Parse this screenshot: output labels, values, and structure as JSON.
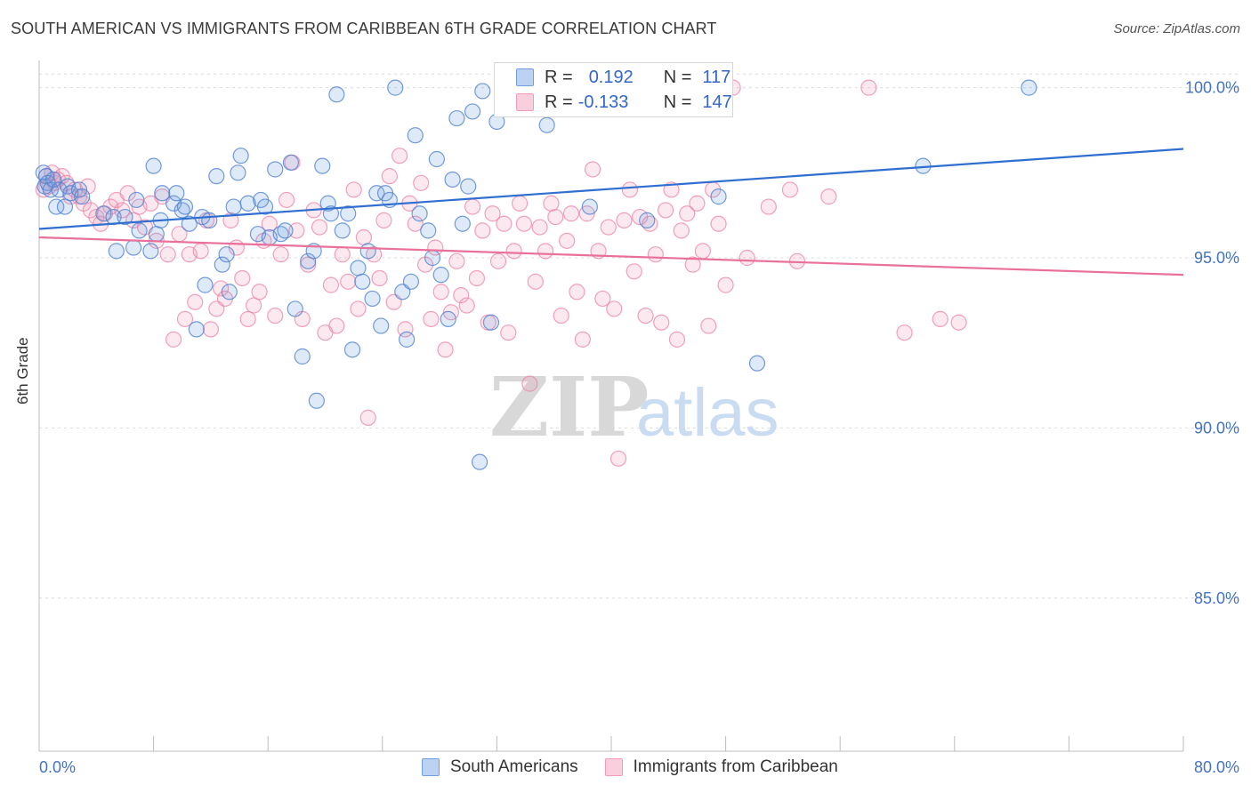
{
  "title": "SOUTH AMERICAN VS IMMIGRANTS FROM CARIBBEAN 6TH GRADE CORRELATION CHART",
  "source": "Source: ZipAtlas.com",
  "watermark": {
    "zip": "ZIP",
    "atlas": "atlas"
  },
  "legend_top": {
    "rows": [
      {
        "r_label": "R =",
        "r_value": "0.192",
        "n_label": "N =",
        "n_value": "117"
      },
      {
        "r_label": "R =",
        "r_value": "-0.133",
        "n_label": "N =",
        "n_value": "147"
      }
    ]
  },
  "legend_bottom": [
    "South Americans",
    "Immigrants from Caribbean"
  ],
  "chart_data": {
    "type": "scatter",
    "title": "SOUTH AMERICAN VS IMMIGRANTS FROM CARIBBEAN 6TH GRADE CORRELATION CHART",
    "xlabel": "",
    "ylabel": "6th Grade",
    "xlim": [
      0,
      80
    ],
    "ylim": [
      80.5,
      100.8
    ],
    "x_tick_labels": [
      "0.0%",
      "80.0%"
    ],
    "y_tick_values": [
      85,
      90,
      95,
      100
    ],
    "y_tick_labels": [
      "85.0%",
      "90.0%",
      "95.0%",
      "100.0%"
    ],
    "grid": true,
    "legend_placement": "bottom",
    "colors": {
      "South Americans": "#6f9fe0",
      "Immigrants from Caribbean": "#f29ab8",
      "line_blue": "#2f6fd0",
      "line_pink": "#e8709a"
    },
    "series": [
      {
        "name": "South Americans",
        "trend": {
          "x": [
            0,
            80
          ],
          "y": [
            95.85,
            98.2
          ]
        },
        "points": [
          [
            0.3,
            97.5
          ],
          [
            0.4,
            97.1
          ],
          [
            0.5,
            97.4
          ],
          [
            0.6,
            97.2
          ],
          [
            0.8,
            97.0
          ],
          [
            1.0,
            97.3
          ],
          [
            1.2,
            96.5
          ],
          [
            1.4,
            97.0
          ],
          [
            1.8,
            96.5
          ],
          [
            2.0,
            97.1
          ],
          [
            2.2,
            96.9
          ],
          [
            2.8,
            97.0
          ],
          [
            3.0,
            96.8
          ],
          [
            4.5,
            96.3
          ],
          [
            5.2,
            96.2
          ],
          [
            5.4,
            95.2
          ],
          [
            6.0,
            96.2
          ],
          [
            6.6,
            95.3
          ],
          [
            6.8,
            96.7
          ],
          [
            7.0,
            95.8
          ],
          [
            7.8,
            95.2
          ],
          [
            8.0,
            97.7
          ],
          [
            8.2,
            95.7
          ],
          [
            8.5,
            96.1
          ],
          [
            8.6,
            96.9
          ],
          [
            9.4,
            96.6
          ],
          [
            9.6,
            96.9
          ],
          [
            10.0,
            96.4
          ],
          [
            10.2,
            96.5
          ],
          [
            10.5,
            96.0
          ],
          [
            11.0,
            92.9
          ],
          [
            11.4,
            96.2
          ],
          [
            11.6,
            94.2
          ],
          [
            11.9,
            96.1
          ],
          [
            12.4,
            97.4
          ],
          [
            12.8,
            94.8
          ],
          [
            13.1,
            95.1
          ],
          [
            13.3,
            94.0
          ],
          [
            13.6,
            96.5
          ],
          [
            13.9,
            97.5
          ],
          [
            14.1,
            98.0
          ],
          [
            14.6,
            96.6
          ],
          [
            15.3,
            95.7
          ],
          [
            15.5,
            96.7
          ],
          [
            15.8,
            96.5
          ],
          [
            16.1,
            95.6
          ],
          [
            16.5,
            97.6
          ],
          [
            16.9,
            95.7
          ],
          [
            17.2,
            95.8
          ],
          [
            17.6,
            97.8
          ],
          [
            17.9,
            93.5
          ],
          [
            18.4,
            92.1
          ],
          [
            18.8,
            94.9
          ],
          [
            19.2,
            95.2
          ],
          [
            19.4,
            90.8
          ],
          [
            19.8,
            97.7
          ],
          [
            20.2,
            96.6
          ],
          [
            20.4,
            96.3
          ],
          [
            20.8,
            99.8
          ],
          [
            21.2,
            95.8
          ],
          [
            21.6,
            96.3
          ],
          [
            21.9,
            92.3
          ],
          [
            22.3,
            94.7
          ],
          [
            22.6,
            94.3
          ],
          [
            23.0,
            95.2
          ],
          [
            23.3,
            93.8
          ],
          [
            23.6,
            96.9
          ],
          [
            23.9,
            93.0
          ],
          [
            24.2,
            96.9
          ],
          [
            24.5,
            96.7
          ],
          [
            24.9,
            100.0
          ],
          [
            25.4,
            94.0
          ],
          [
            25.7,
            92.6
          ],
          [
            26.0,
            94.3
          ],
          [
            26.3,
            98.6
          ],
          [
            26.6,
            96.3
          ],
          [
            27.2,
            95.8
          ],
          [
            27.5,
            95.0
          ],
          [
            27.8,
            97.9
          ],
          [
            28.1,
            94.5
          ],
          [
            28.6,
            93.2
          ],
          [
            28.9,
            97.3
          ],
          [
            29.2,
            99.1
          ],
          [
            29.6,
            96.0
          ],
          [
            30.0,
            97.1
          ],
          [
            30.3,
            99.3
          ],
          [
            30.8,
            89.0
          ],
          [
            31.0,
            99.9
          ],
          [
            31.6,
            93.1
          ],
          [
            32.0,
            99.0
          ],
          [
            32.4,
            99.7
          ],
          [
            33.2,
            100.0
          ],
          [
            35.5,
            98.9
          ],
          [
            36.0,
            99.9
          ],
          [
            38.5,
            96.5
          ],
          [
            42.5,
            96.1
          ],
          [
            47.5,
            96.8
          ],
          [
            50.2,
            91.9
          ],
          [
            61.8,
            97.7
          ],
          [
            69.2,
            100.0
          ]
        ]
      },
      {
        "name": "Immigrants from Caribbean",
        "trend": {
          "x": [
            0,
            80
          ],
          "y": [
            95.6,
            94.5
          ]
        },
        "points": [
          [
            0.3,
            97.0
          ],
          [
            0.5,
            97.4
          ],
          [
            0.7,
            97.1
          ],
          [
            0.9,
            97.5
          ],
          [
            1.1,
            97.2
          ],
          [
            1.3,
            97.3
          ],
          [
            1.6,
            97.4
          ],
          [
            1.9,
            97.2
          ],
          [
            2.2,
            96.8
          ],
          [
            2.5,
            97.0
          ],
          [
            2.8,
            96.8
          ],
          [
            3.1,
            96.6
          ],
          [
            3.4,
            97.1
          ],
          [
            3.6,
            96.4
          ],
          [
            4.0,
            96.2
          ],
          [
            4.3,
            96.0
          ],
          [
            4.6,
            96.3
          ],
          [
            5.0,
            96.5
          ],
          [
            5.4,
            96.7
          ],
          [
            5.8,
            96.4
          ],
          [
            6.2,
            96.9
          ],
          [
            6.6,
            96.1
          ],
          [
            7.0,
            96.5
          ],
          [
            7.4,
            95.9
          ],
          [
            7.8,
            96.6
          ],
          [
            8.2,
            95.5
          ],
          [
            8.6,
            96.8
          ],
          [
            9.0,
            95.1
          ],
          [
            9.4,
            92.6
          ],
          [
            9.8,
            95.7
          ],
          [
            10.2,
            93.2
          ],
          [
            10.5,
            95.1
          ],
          [
            10.9,
            93.7
          ],
          [
            11.3,
            95.2
          ],
          [
            11.7,
            96.1
          ],
          [
            12.0,
            92.9
          ],
          [
            12.4,
            93.5
          ],
          [
            12.7,
            94.1
          ],
          [
            13.0,
            93.8
          ],
          [
            13.4,
            96.1
          ],
          [
            13.8,
            95.3
          ],
          [
            14.2,
            94.4
          ],
          [
            14.6,
            93.2
          ],
          [
            15.0,
            93.6
          ],
          [
            15.4,
            94.0
          ],
          [
            15.7,
            95.5
          ],
          [
            16.1,
            96.0
          ],
          [
            16.5,
            93.3
          ],
          [
            16.9,
            95.1
          ],
          [
            17.3,
            96.7
          ],
          [
            17.7,
            97.8
          ],
          [
            18.0,
            95.8
          ],
          [
            18.4,
            93.2
          ],
          [
            18.8,
            94.8
          ],
          [
            19.2,
            96.4
          ],
          [
            19.6,
            95.9
          ],
          [
            20.0,
            92.8
          ],
          [
            20.4,
            94.2
          ],
          [
            20.8,
            93.0
          ],
          [
            21.2,
            95.1
          ],
          [
            21.6,
            94.3
          ],
          [
            22.0,
            97.0
          ],
          [
            22.3,
            93.5
          ],
          [
            22.7,
            95.6
          ],
          [
            23.0,
            90.3
          ],
          [
            23.4,
            95.1
          ],
          [
            23.8,
            94.4
          ],
          [
            24.1,
            96.1
          ],
          [
            24.5,
            97.4
          ],
          [
            24.8,
            93.7
          ],
          [
            25.2,
            98.0
          ],
          [
            25.6,
            92.9
          ],
          [
            25.9,
            96.6
          ],
          [
            26.3,
            96.0
          ],
          [
            26.7,
            97.2
          ],
          [
            27.0,
            94.8
          ],
          [
            27.4,
            93.2
          ],
          [
            27.7,
            95.3
          ],
          [
            28.1,
            94.0
          ],
          [
            28.4,
            92.3
          ],
          [
            28.8,
            93.4
          ],
          [
            29.2,
            94.9
          ],
          [
            29.5,
            93.9
          ],
          [
            29.9,
            93.6
          ],
          [
            30.3,
            96.5
          ],
          [
            30.6,
            94.4
          ],
          [
            31.0,
            95.8
          ],
          [
            31.4,
            93.1
          ],
          [
            31.7,
            96.3
          ],
          [
            32.1,
            94.9
          ],
          [
            32.5,
            96.0
          ],
          [
            32.8,
            92.8
          ],
          [
            33.2,
            95.2
          ],
          [
            33.6,
            96.6
          ],
          [
            33.9,
            96.0
          ],
          [
            34.3,
            91.3
          ],
          [
            34.7,
            94.3
          ],
          [
            35.0,
            95.9
          ],
          [
            35.4,
            95.2
          ],
          [
            35.8,
            96.6
          ],
          [
            36.1,
            96.2
          ],
          [
            36.5,
            93.3
          ],
          [
            36.9,
            95.5
          ],
          [
            37.2,
            96.3
          ],
          [
            37.6,
            94.0
          ],
          [
            38.0,
            92.6
          ],
          [
            38.3,
            96.3
          ],
          [
            38.7,
            97.6
          ],
          [
            39.1,
            95.2
          ],
          [
            39.4,
            93.8
          ],
          [
            39.8,
            95.9
          ],
          [
            40.2,
            93.5
          ],
          [
            40.5,
            89.1
          ],
          [
            40.9,
            96.1
          ],
          [
            41.3,
            97.0
          ],
          [
            41.6,
            94.6
          ],
          [
            42.0,
            96.2
          ],
          [
            42.4,
            93.3
          ],
          [
            42.7,
            96.0
          ],
          [
            43.1,
            95.1
          ],
          [
            43.5,
            93.1
          ],
          [
            43.8,
            96.4
          ],
          [
            44.2,
            97.0
          ],
          [
            44.6,
            92.6
          ],
          [
            44.9,
            95.8
          ],
          [
            45.3,
            96.3
          ],
          [
            45.7,
            94.8
          ],
          [
            46.0,
            96.6
          ],
          [
            46.4,
            95.2
          ],
          [
            46.8,
            93.0
          ],
          [
            47.1,
            97.0
          ],
          [
            47.5,
            96.0
          ],
          [
            48.0,
            94.2
          ],
          [
            48.5,
            100.0
          ],
          [
            49.5,
            95.0
          ],
          [
            51.0,
            96.5
          ],
          [
            52.5,
            97.0
          ],
          [
            53.0,
            94.9
          ],
          [
            55.2,
            96.8
          ],
          [
            58.0,
            100.0
          ],
          [
            60.5,
            92.8
          ],
          [
            63.0,
            93.2
          ],
          [
            64.3,
            93.1
          ]
        ]
      }
    ]
  }
}
